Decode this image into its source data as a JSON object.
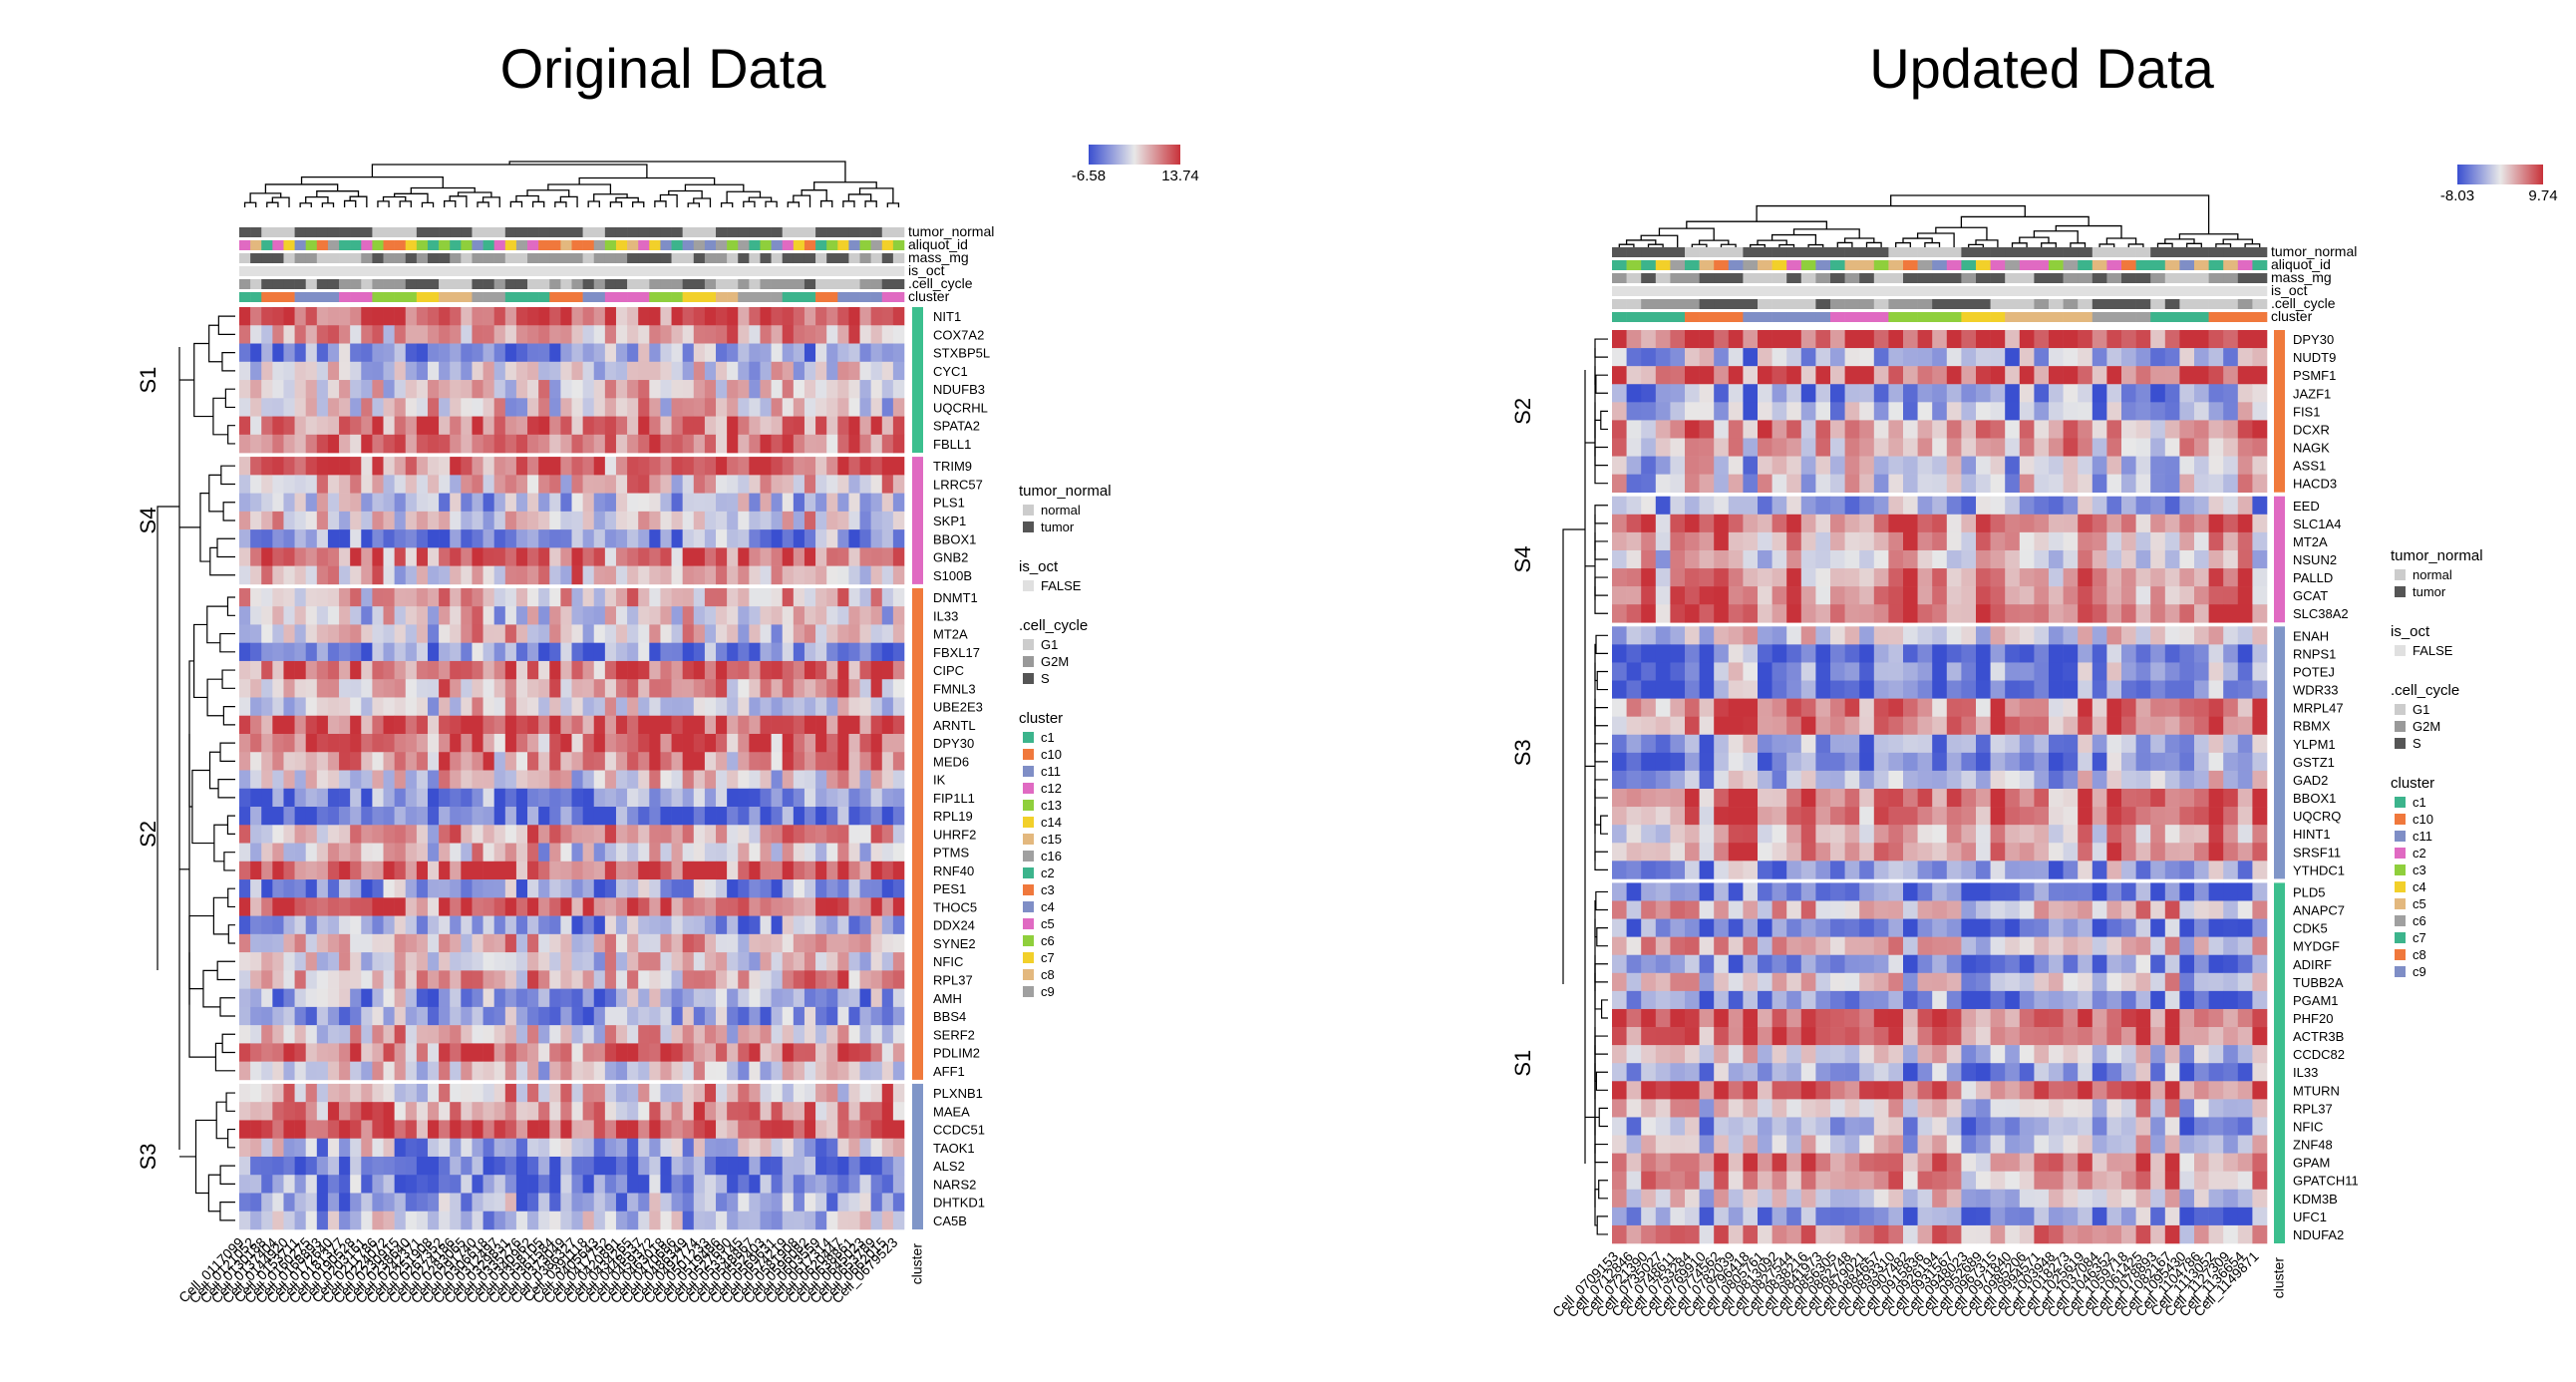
{
  "chart_data": [
    {
      "type": "heatmap",
      "title": "Original Data",
      "color_scale": {
        "min": -6.58,
        "max": 13.74,
        "min_color": "#3a4fd0",
        "mid_color": "#e8e8e8",
        "max_color": "#c8323a"
      },
      "annotation_tracks": [
        "tumor_normal",
        "aliquot_id",
        "mass_mg",
        "is_oct",
        ".cell_cycle",
        "cluster"
      ],
      "cluster_axis_label": "cluster",
      "columns": [
        "Cell_0117099",
        "Cell_0121052",
        "Cell_0130188",
        "Cell_0137404",
        "Cell_0144920",
        "Cell_0153711",
        "Cell_0160275",
        "Cell_0168893",
        "Cell_0172640",
        "Cell_0181377",
        "Cell_0190528",
        "Cell_0203161",
        "Cell_0211786",
        "Cell_0224072",
        "Cell_0230915",
        "Cell_0238640",
        "Cell_0242371",
        "Cell_0251908",
        "Cell_0267352",
        "Cell_0274186",
        "Cell_0283065",
        "Cell_0291740",
        "Cell_0306618",
        "Cell_0312497",
        "Cell_0329831",
        "Cell_0335276",
        "Cell_0340962",
        "Cell_0358105",
        "Cell_0361584",
        "Cell_0373049",
        "Cell_0386327",
        "Cell_0391118",
        "Cell_0405643",
        "Cell_0417752",
        "Cell_0420891",
        "Cell_0434265",
        "Cell_0448537",
        "Cell_0459372",
        "Cell_0463018",
        "Cell_0470686",
        "Cell_0486349",
        "Cell_0492774",
        "Cell_0501233",
        "Cell_0519486",
        "Cell_0527690",
        "Cell_0533145",
        "Cell_0548867",
        "Cell_0552403",
        "Cell_0569631",
        "Cell_0574219",
        "Cell_0581908",
        "Cell_0596082",
        "Cell_0603559",
        "Cell_0617314",
        "Cell_0620447",
        "Cell_0638861",
        "Cell_0645023",
        "Cell_0653789",
        "Cell_0662015",
        "Cell_0679523"
      ],
      "column_groups": [
        2,
        3,
        4,
        3,
        4,
        2,
        3,
        3,
        4,
        3,
        2,
        4,
        3,
        3,
        2,
        4,
        3,
        2,
        4,
        2
      ],
      "sections": [
        {
          "name": "S1",
          "color": "#3cbf8e",
          "genes": [
            "NIT1",
            "COX7A2",
            "STXBP5L",
            "CYC1",
            "NDUFB3",
            "UQCRHL",
            "SPATA2",
            "FBLL1"
          ]
        },
        {
          "name": "S4",
          "color": "#e06ac2",
          "genes": [
            "TRIM9",
            "LRRC57",
            "PLS1",
            "SKP1",
            "BBOX1",
            "GNB2",
            "S100B"
          ]
        },
        {
          "name": "S2",
          "color": "#f07a3c",
          "genes": [
            "DNMT1",
            "IL33",
            "MT2A",
            "FBXL17",
            "CIPC",
            "FMNL3",
            "UBE2E3",
            "ARNTL",
            "DPY30",
            "MED6",
            "IK",
            "FIP1L1",
            "RPL19",
            "UHRF2",
            "PTMS",
            "RNF40",
            "PES1",
            "THOC5",
            "DDX24",
            "SYNE2",
            "NFIC",
            "RPL37",
            "AMH",
            "BBS4",
            "SERF2",
            "PDLIM2",
            "AFF1"
          ]
        },
        {
          "name": "S3",
          "color": "#8096c8",
          "genes": [
            "PLXNB1",
            "MAEA",
            "CCDC51",
            "TAOK1",
            "ALS2",
            "NARS2",
            "DHTKD1",
            "CA5B"
          ]
        }
      ],
      "legend": [
        {
          "title": "tumor_normal",
          "items": [
            {
              "label": "normal",
              "color": "#cccccc"
            },
            {
              "label": "tumor",
              "color": "#555555"
            }
          ]
        },
        {
          "title": "is_oct",
          "items": [
            {
              "label": "FALSE",
              "color": "#e0e0e0"
            }
          ]
        },
        {
          "title": ".cell_cycle",
          "items": [
            {
              "label": "G1",
              "color": "#cccccc"
            },
            {
              "label": "G2M",
              "color": "#999999"
            },
            {
              "label": "S",
              "color": "#555555"
            }
          ]
        },
        {
          "title": "cluster",
          "items": [
            {
              "label": "c1",
              "color": "#3cb48c"
            },
            {
              "label": "c10",
              "color": "#f0783c"
            },
            {
              "label": "c11",
              "color": "#7f8ec6"
            },
            {
              "label": "c12",
              "color": "#e06ac2"
            },
            {
              "label": "c13",
              "color": "#8fcf3c"
            },
            {
              "label": "c14",
              "color": "#f2d02a"
            },
            {
              "label": "c15",
              "color": "#e3b87e"
            },
            {
              "label": "c16",
              "color": "#a0a0a0"
            },
            {
              "label": "c2",
              "color": "#3cb48c"
            },
            {
              "label": "c3",
              "color": "#f0783c"
            },
            {
              "label": "c4",
              "color": "#7f8ec6"
            },
            {
              "label": "c5",
              "color": "#e06ac2"
            },
            {
              "label": "c6",
              "color": "#8fcf3c"
            },
            {
              "label": "c7",
              "color": "#f2d02a"
            },
            {
              "label": "c8",
              "color": "#e3b87e"
            },
            {
              "label": "c9",
              "color": "#a0a0a0"
            }
          ]
        }
      ]
    },
    {
      "type": "heatmap",
      "title": "Updated Data",
      "color_scale": {
        "min": -8.03,
        "max": 9.74,
        "min_color": "#3a4fd0",
        "mid_color": "#e8e8e8",
        "max_color": "#c8323a"
      },
      "annotation_tracks": [
        "tumor_normal",
        "aliquot_id",
        "mass_mg",
        "is_oct",
        ".cell_cycle",
        "cluster"
      ],
      "cluster_axis_label": "cluster",
      "columns": [
        "Cell_0709153",
        "Cell_0712846",
        "Cell_0721390",
        "Cell_0735027",
        "Cell_0748611",
        "Cell_0753284",
        "Cell_0769910",
        "Cell_0774562",
        "Cell_0782039",
        "Cell_0796418",
        "Cell_0805761",
        "Cell_0813092",
        "Cell_0827544",
        "Cell_0838216",
        "Cell_0841973",
        "Cell_0856305",
        "Cell_0862748",
        "Cell_0879021",
        "Cell_0884657",
        "Cell_0893310",
        "Cell_0907482",
        "Cell_0915836",
        "Cell_0926194",
        "Cell_0931567",
        "Cell_0948023",
        "Cell_0952689",
        "Cell_0967315",
        "Cell_0971840",
        "Cell_0985206",
        "Cell_0994571",
        "Cell_1003948",
        "Cell_1018273",
        "Cell_1025619",
        "Cell_1037084",
        "Cell_1046352",
        "Cell_1059718",
        "Cell_1061425",
        "Cell_1078893",
        "Cell_1082167",
        "Cell_1095430",
        "Cell_1104786",
        "Cell_1113052",
        "Cell_1127309",
        "Cell_1136654",
        "Cell_1149871"
      ],
      "column_groups": [
        5,
        4,
        6,
        4,
        5,
        3,
        6,
        4,
        4,
        4
      ],
      "sections": [
        {
          "name": "S2",
          "color": "#f07a3c",
          "genes": [
            "DPY30",
            "NUDT9",
            "PSMF1",
            "JAZF1",
            "FIS1",
            "DCXR",
            "NAGK",
            "ASS1",
            "HACD3"
          ]
        },
        {
          "name": "S4",
          "color": "#e06ac2",
          "genes": [
            "EED",
            "SLC1A4",
            "MT2A",
            "NSUN2",
            "PALLD",
            "GCAT",
            "SLC38A2"
          ]
        },
        {
          "name": "S3",
          "color": "#8096c8",
          "genes": [
            "ENAH",
            "RNPS1",
            "POTEJ",
            "WDR33",
            "MRPL47",
            "RBMX",
            "YLPM1",
            "GSTZ1",
            "GAD2",
            "BBOX1",
            "UQCRQ",
            "HINT1",
            "SRSF11",
            "YTHDC1"
          ]
        },
        {
          "name": "S1",
          "color": "#3cbf8e",
          "genes": [
            "PLD5",
            "ANAPC7",
            "CDK5",
            "MYDGF",
            "ADIRF",
            "TUBB2A",
            "PGAM1",
            "PHF20",
            "ACTR3B",
            "CCDC82",
            "IL33",
            "MTURN",
            "RPL37",
            "NFIC",
            "ZNF48",
            "GPAM",
            "GPATCH11",
            "KDM3B",
            "UFC1",
            "NDUFA2"
          ]
        }
      ],
      "legend": [
        {
          "title": "tumor_normal",
          "items": [
            {
              "label": "normal",
              "color": "#cccccc"
            },
            {
              "label": "tumor",
              "color": "#555555"
            }
          ]
        },
        {
          "title": "is_oct",
          "items": [
            {
              "label": "FALSE",
              "color": "#e0e0e0"
            }
          ]
        },
        {
          "title": ".cell_cycle",
          "items": [
            {
              "label": "G1",
              "color": "#cccccc"
            },
            {
              "label": "G2M",
              "color": "#999999"
            },
            {
              "label": "S",
              "color": "#555555"
            }
          ]
        },
        {
          "title": "cluster",
          "items": [
            {
              "label": "c1",
              "color": "#3cb48c"
            },
            {
              "label": "c10",
              "color": "#f0783c"
            },
            {
              "label": "c11",
              "color": "#7f8ec6"
            },
            {
              "label": "c2",
              "color": "#e06ac2"
            },
            {
              "label": "c3",
              "color": "#8fcf3c"
            },
            {
              "label": "c4",
              "color": "#f2d02a"
            },
            {
              "label": "c5",
              "color": "#e3b87e"
            },
            {
              "label": "c6",
              "color": "#a0a0a0"
            },
            {
              "label": "c7",
              "color": "#3cb48c"
            },
            {
              "label": "c8",
              "color": "#f0783c"
            },
            {
              "label": "c9",
              "color": "#7f8ec6"
            }
          ]
        }
      ]
    }
  ]
}
